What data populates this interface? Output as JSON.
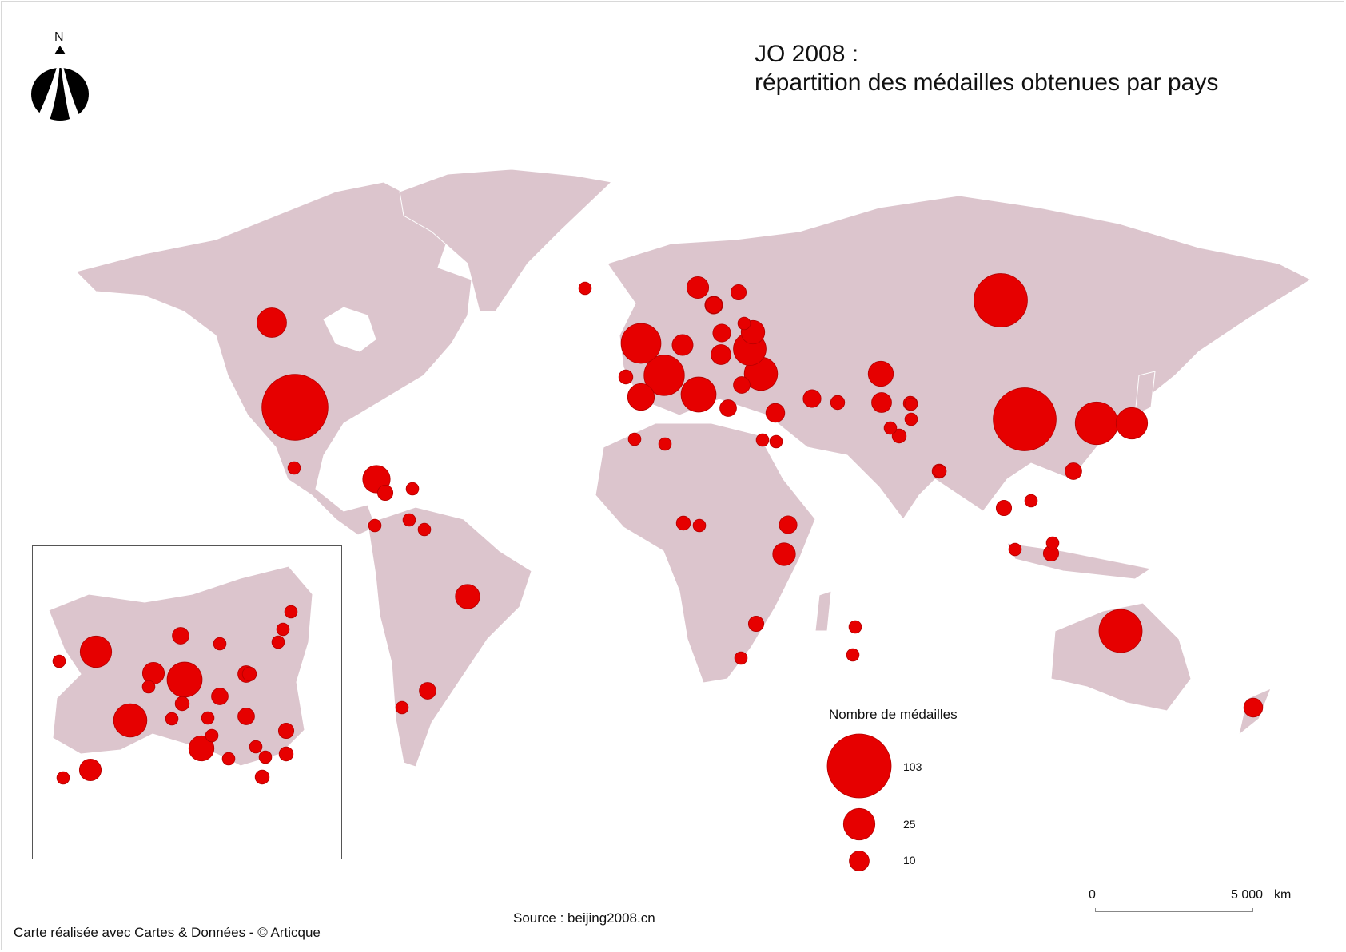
{
  "title": {
    "line1": "JO 2008 :",
    "line2": "répartition des médailles obtenues par pays"
  },
  "north_arrow": {
    "label": "N",
    "icon": "north-arrow-icon"
  },
  "colors": {
    "land": "#dcc5cd",
    "land_stroke": "#ffffff",
    "bubble": "#e60000",
    "bubble_stroke": "#b40000",
    "frame": "#555555"
  },
  "legend": {
    "title": "Nombre de médailles",
    "items": [
      {
        "value": 103,
        "label": "103"
      },
      {
        "value": 25,
        "label": "25"
      },
      {
        "value": 10,
        "label": "10"
      }
    ]
  },
  "scale_bar": {
    "start": "0",
    "end": "5 000",
    "unit": "km"
  },
  "source": "Source : beijing2008.cn",
  "credit": "Carte réalisée avec Cartes & Données - © Articque",
  "medal_symbols": [
    {
      "medals": 110
    },
    {
      "medals": 100
    },
    {
      "medals": 72
    },
    {
      "medals": 47
    },
    {
      "medals": 46
    },
    {
      "medals": 41
    },
    {
      "medals": 40
    },
    {
      "medals": 31
    },
    {
      "medals": 28
    },
    {
      "medals": 27
    },
    {
      "medals": 25
    },
    {
      "medals": 24
    },
    {
      "medals": 22
    },
    {
      "medals": 19
    },
    {
      "medals": 18
    },
    {
      "medals": 16
    },
    {
      "medals": 15
    },
    {
      "medals": 14
    },
    {
      "medals": 13
    },
    {
      "medals": 12
    },
    {
      "medals": 11
    },
    {
      "medals": 10
    },
    {
      "medals": 9
    },
    {
      "medals": 8
    },
    {
      "medals": 7
    },
    {
      "medals": 6
    },
    {
      "medals": 5
    },
    {
      "medals": 4
    },
    {
      "medals": 3
    },
    {
      "medals": 2
    },
    {
      "medals": 1
    }
  ]
}
